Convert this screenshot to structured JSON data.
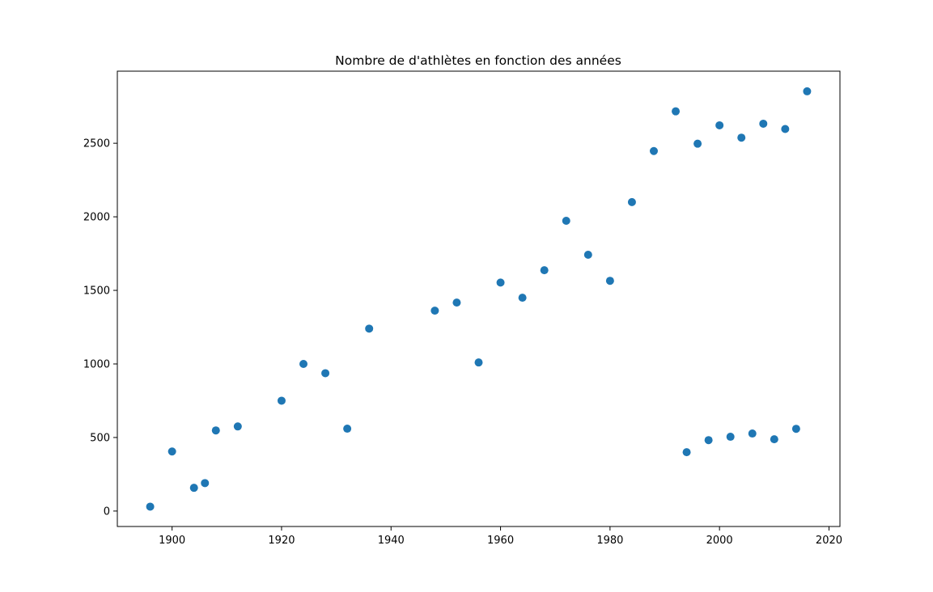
{
  "chart_data": {
    "type": "scatter",
    "title": "Nombre de d'athlètes en fonction des années",
    "xlabel": "",
    "ylabel": "",
    "xlim": [
      1890,
      2022
    ],
    "ylim": [
      -105,
      2990
    ],
    "x_ticks": [
      1900,
      1920,
      1940,
      1960,
      1980,
      2000,
      2020
    ],
    "y_ticks": [
      0,
      500,
      1000,
      1500,
      2000,
      2500
    ],
    "grid": false,
    "marker_color": "#1f77b4",
    "series": [
      {
        "points": [
          [
            1896,
            30
          ],
          [
            1900,
            405
          ],
          [
            1904,
            158
          ],
          [
            1906,
            190
          ],
          [
            1908,
            548
          ],
          [
            1912,
            575
          ],
          [
            1920,
            750
          ],
          [
            1924,
            1000
          ],
          [
            1928,
            937
          ],
          [
            1932,
            560
          ],
          [
            1936,
            1240
          ],
          [
            1948,
            1362
          ],
          [
            1952,
            1417
          ],
          [
            1956,
            1010
          ],
          [
            1960,
            1553
          ],
          [
            1964,
            1450
          ],
          [
            1968,
            1637
          ],
          [
            1972,
            1973
          ],
          [
            1976,
            1742
          ],
          [
            1980,
            1565
          ],
          [
            1984,
            2100
          ],
          [
            1988,
            2447
          ],
          [
            1992,
            2717
          ],
          [
            1994,
            400
          ],
          [
            1996,
            2497
          ],
          [
            1998,
            482
          ],
          [
            2000,
            2622
          ],
          [
            2002,
            505
          ],
          [
            2004,
            2538
          ],
          [
            2006,
            527
          ],
          [
            2008,
            2633
          ],
          [
            2010,
            488
          ],
          [
            2012,
            2597
          ],
          [
            2014,
            559
          ],
          [
            2016,
            2853
          ]
        ]
      }
    ]
  }
}
